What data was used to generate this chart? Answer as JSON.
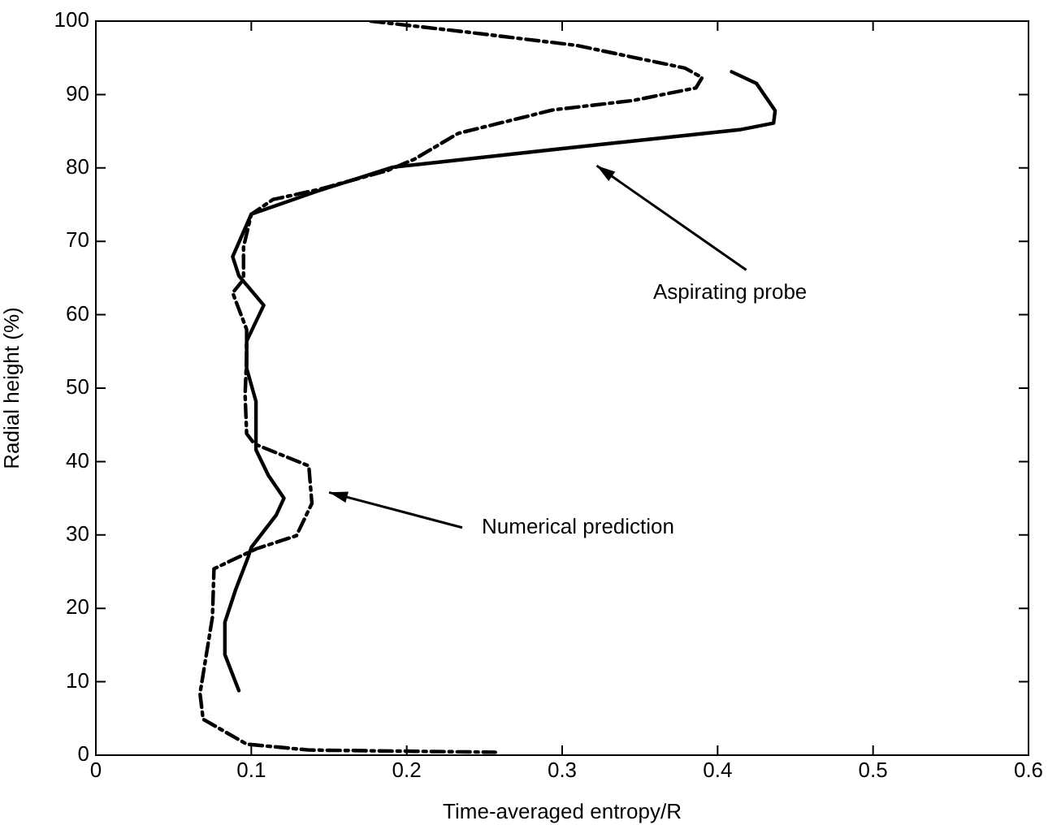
{
  "chart_data": {
    "type": "line",
    "xlabel": "Time-averaged entropy/R",
    "ylabel": "Radial height (%)",
    "xlim": [
      0,
      0.6
    ],
    "xticks": [
      0,
      0.1,
      0.2,
      0.3,
      0.4,
      0.5,
      0.6
    ],
    "ylim": [
      0,
      100
    ],
    "yticks": [
      0,
      10,
      20,
      30,
      40,
      50,
      60,
      70,
      80,
      90,
      100
    ],
    "grid": false,
    "legend": false,
    "marker": "none",
    "series": [
      {
        "color": "#000000",
        "line_style": "solid",
        "x": [
          0.409,
          0.425,
          0.437,
          0.436,
          0.414,
          0.294,
          0.191,
          0.142,
          0.1,
          0.088,
          0.092,
          0.108,
          0.097,
          0.097,
          0.103,
          0.103,
          0.111,
          0.121,
          0.116,
          0.1,
          0.098,
          0.09,
          0.083,
          0.083,
          0.092
        ],
        "values": [
          93.1,
          91.5,
          87.8,
          86.1,
          85.2,
          82.5,
          80.1,
          76.8,
          73.7,
          67.9,
          65.3,
          61.3,
          56.4,
          52.7,
          48.2,
          41.6,
          38.1,
          35.0,
          32.7,
          28.3,
          27.0,
          22.6,
          18.1,
          13.7,
          8.8
        ]
      },
      {
        "color": "#000000",
        "line_style": "dashed",
        "x": [
          0.177,
          0.239,
          0.309,
          0.379,
          0.39,
          0.386,
          0.346,
          0.294,
          0.233,
          0.205,
          0.187,
          0.142,
          0.114,
          0.1,
          0.095,
          0.095,
          0.088,
          0.097,
          0.097,
          0.096,
          0.097,
          0.102,
          0.137,
          0.139,
          0.129,
          0.103,
          0.076,
          0.075,
          0.067,
          0.069,
          0.097,
          0.137,
          0.257
        ],
        "values": [
          100,
          98.5,
          96.7,
          93.6,
          92.3,
          90.9,
          89.2,
          87.9,
          84.7,
          81.2,
          79.6,
          77,
          75.7,
          73.7,
          69.2,
          64.8,
          63,
          58,
          54.2,
          49.1,
          43.8,
          42.4,
          39.4,
          34.3,
          29.9,
          28.1,
          25.4,
          18.8,
          8.4,
          4.9,
          1.5,
          0.7,
          0.4
        ]
      }
    ],
    "annotations": [
      "Aspirating probe",
      "Numerical prediction"
    ]
  }
}
